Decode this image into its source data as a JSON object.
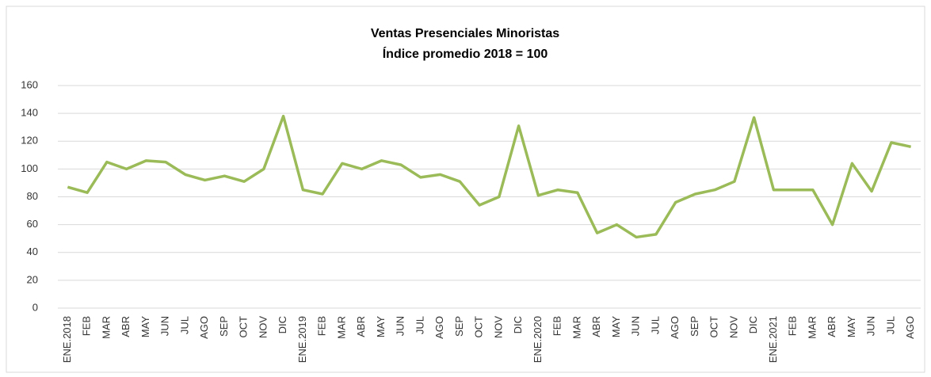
{
  "chart_data": {
    "type": "line",
    "title": "Ventas Presenciales Minoristas",
    "subtitle": "Índice promedio 2018 = 100",
    "categories": [
      "ENE.2018",
      "FEB",
      "MAR",
      "ABR",
      "MAY",
      "JUN",
      "JUL",
      "AGO",
      "SEP",
      "OCT",
      "NOV",
      "DIC",
      "ENE.2019",
      "FEB",
      "MAR",
      "ABR",
      "MAY",
      "JUN",
      "JUL",
      "AGO",
      "SEP",
      "OCT",
      "NOV",
      "DIC",
      "ENE.2020",
      "FEB",
      "MAR",
      "ABR",
      "MAY",
      "JUN",
      "JUL",
      "AGO",
      "SEP",
      "OCT",
      "NOV",
      "DIC",
      "ENE.2021",
      "FEB",
      "MAR",
      "ABR",
      "MAY",
      "JUN",
      "JUL",
      "AGO"
    ],
    "values": [
      87,
      83,
      105,
      100,
      106,
      105,
      96,
      92,
      95,
      91,
      100,
      138,
      85,
      82,
      104,
      100,
      106,
      103,
      94,
      96,
      91,
      74,
      80,
      131,
      81,
      85,
      83,
      54,
      60,
      51,
      53,
      76,
      82,
      85,
      91,
      137,
      85,
      85,
      85,
      60,
      104,
      84,
      119,
      116
    ],
    "color": "#9bbb59",
    "ylim": [
      0,
      160
    ],
    "yticks": [
      0,
      20,
      40,
      60,
      80,
      100,
      120,
      140,
      160
    ],
    "grid": true
  }
}
